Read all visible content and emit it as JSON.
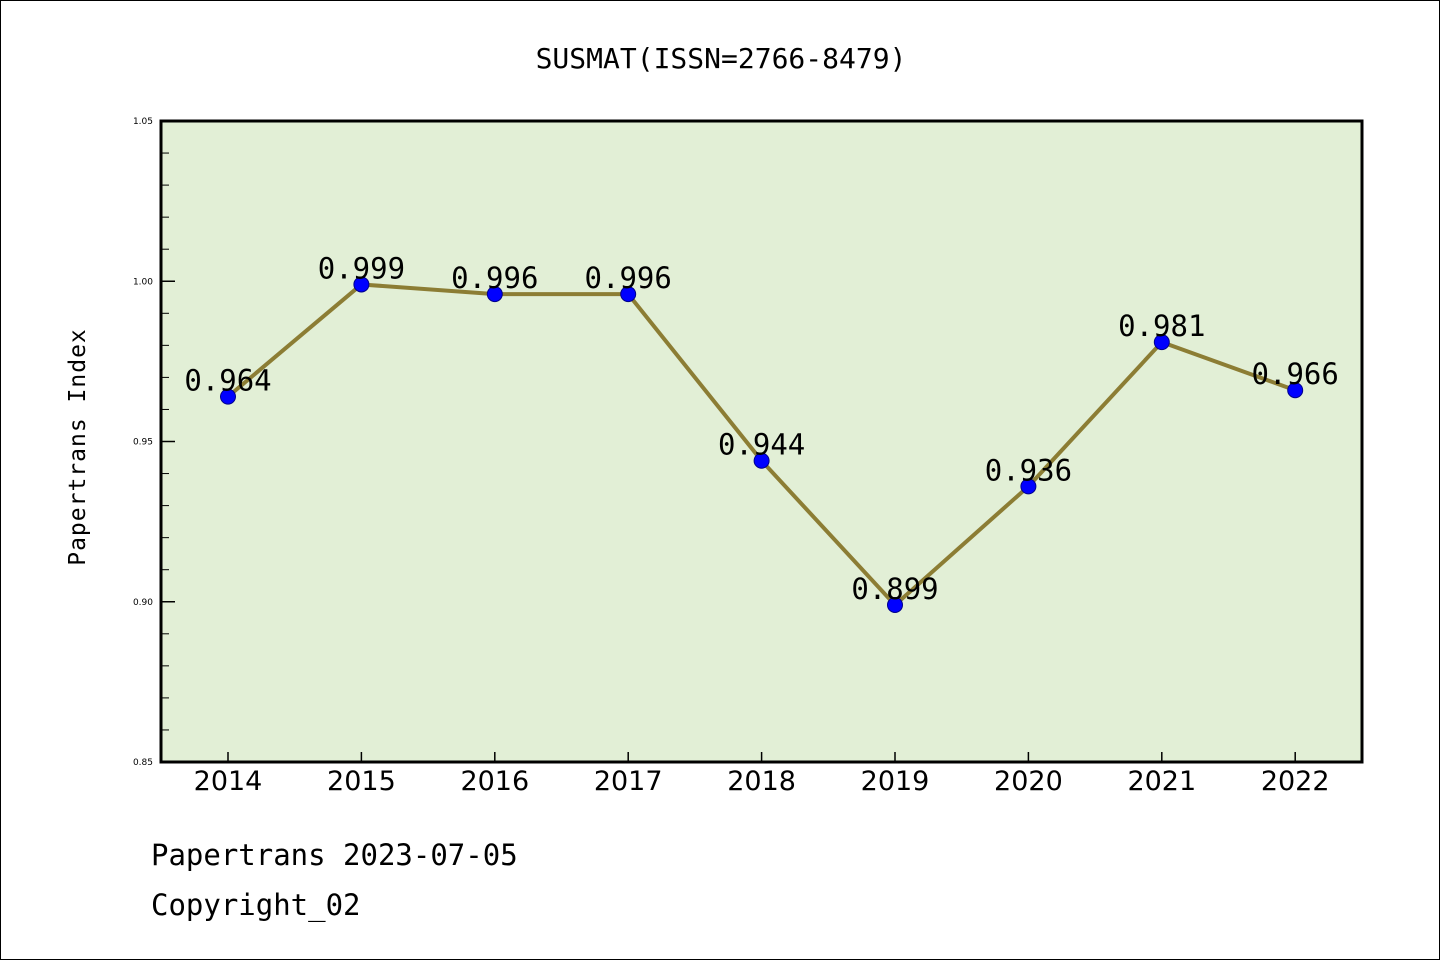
{
  "chart_data": {
    "type": "line",
    "title": "SUSMAT(ISSN=2766-8479)",
    "ylabel": "Papertrans Index",
    "xlabel": "",
    "categories": [
      "2014",
      "2015",
      "2016",
      "2017",
      "2018",
      "2019",
      "2020",
      "2021",
      "2022"
    ],
    "values": [
      0.964,
      0.999,
      0.996,
      0.996,
      0.944,
      0.899,
      0.936,
      0.981,
      0.966
    ],
    "data_labels": [
      "0.964",
      "0.999",
      "0.996",
      "0.996",
      "0.944",
      "0.899",
      "0.936",
      "0.981",
      "0.966"
    ],
    "ylim": [
      0.85,
      1.05
    ],
    "yticks": [
      0.85,
      0.9,
      0.95,
      1.0,
      1.05
    ],
    "ytick_labels": [
      "0.85",
      "0.90",
      "0.95",
      "1.00",
      "1.05"
    ],
    "grid": false,
    "colors": {
      "plot_background": "#e2efd6",
      "line": "#8c7d34",
      "marker": "#0000ff"
    }
  },
  "footer": {
    "line1": "Papertrans 2023-07-05",
    "line2": "Copyright_02"
  }
}
